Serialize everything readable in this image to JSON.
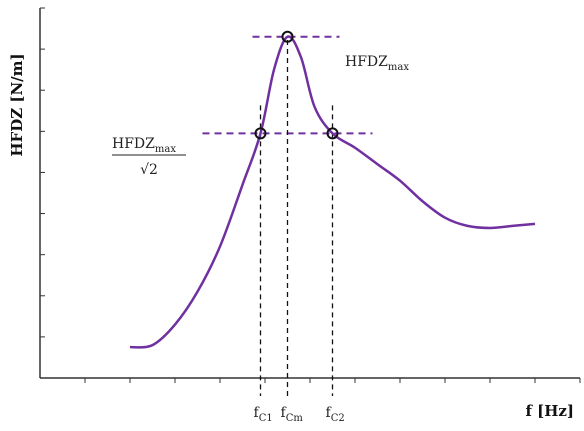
{
  "chart_data": {
    "type": "line",
    "xlabel": "f [Hz]",
    "ylabel": "HFDZ [N/m]",
    "xlim": [
      0,
      12
    ],
    "ylim": [
      0,
      9
    ],
    "curve": {
      "color": "#7030a0",
      "x": [
        2.0,
        2.5,
        3.0,
        3.5,
        4.0,
        4.5,
        4.9,
        5.2,
        5.5,
        5.8,
        6.1,
        6.5,
        7.0,
        7.5,
        8.0,
        8.5,
        9.0,
        9.5,
        10.0,
        10.5,
        11.0
      ],
      "y": [
        0.75,
        0.8,
        1.3,
        2.1,
        3.2,
        4.7,
        5.95,
        7.5,
        8.3,
        7.8,
        6.6,
        5.95,
        5.6,
        5.2,
        4.8,
        4.3,
        3.9,
        3.7,
        3.65,
        3.7,
        3.75
      ]
    },
    "points": [
      {
        "label": "f_Cm",
        "x": 5.5,
        "y": 8.3
      },
      {
        "label": "f_C1",
        "x": 4.9,
        "y": 5.95
      },
      {
        "label": "f_C2",
        "x": 6.5,
        "y": 5.95
      }
    ],
    "guides_color": "#7030a0",
    "x_markers": [
      {
        "base": "f",
        "sub": "C1",
        "x": 4.9
      },
      {
        "base": "f",
        "sub": "Cm",
        "x": 5.5
      },
      {
        "base": "f",
        "sub": "C2",
        "x": 6.5
      }
    ],
    "annotations": {
      "max_base": "HFDZ",
      "max_sub": "max",
      "half_num_base": "HFDZ",
      "half_num_sub": "max",
      "half_den": "√2"
    }
  }
}
